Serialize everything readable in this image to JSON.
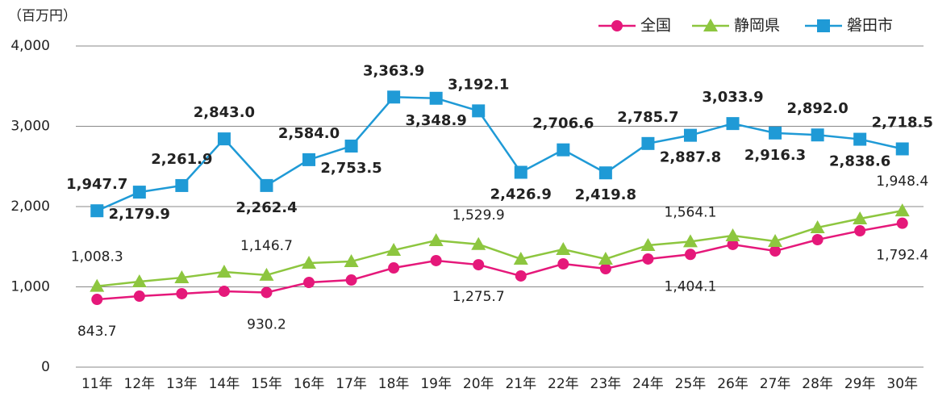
{
  "chart_data": {
    "type": "line",
    "y_label": "（百万円）",
    "categories": [
      "11年",
      "12年",
      "13年",
      "14年",
      "15年",
      "16年",
      "17年",
      "18年",
      "19年",
      "20年",
      "21年",
      "22年",
      "23年",
      "24年",
      "25年",
      "26年",
      "27年",
      "28年",
      "29年",
      "30年"
    ],
    "ylim": [
      0,
      4000
    ],
    "yticks": [
      0,
      {
        "value": 1000,
        "label": "1,000"
      },
      {
        "value": 2000,
        "label": "2,000"
      },
      {
        "value": 3000,
        "label": "3,000"
      },
      {
        "value": 4000,
        "label": "4,000"
      }
    ],
    "grid": true,
    "legend": "top-right",
    "series": [
      {
        "name": "全国",
        "color": "#e5187a",
        "marker": "circle",
        "values": [
          843.7,
          884,
          915,
          945,
          930.2,
          1055,
          1085,
          1236,
          1327,
          1275.7,
          1136,
          1286,
          1226,
          1347,
          1404.1,
          1528,
          1447,
          1588,
          1698,
          1792.4
        ],
        "value_labels": [
          "843.7",
          null,
          null,
          null,
          "930.2",
          null,
          null,
          null,
          null,
          "1,275.7",
          null,
          null,
          null,
          null,
          "1,404.1",
          null,
          null,
          null,
          null,
          "1,792.4"
        ]
      },
      {
        "name": "静岡県",
        "color": "#8dc63f",
        "marker": "triangle",
        "values": [
          1008.3,
          1065,
          1115,
          1186,
          1146.7,
          1296,
          1316,
          1457,
          1578,
          1529.9,
          1347,
          1467,
          1347,
          1518,
          1564.1,
          1638,
          1568,
          1739,
          1849,
          1948.4
        ],
        "value_labels": [
          "1,008.3",
          null,
          null,
          null,
          "1,146.7",
          null,
          null,
          null,
          null,
          "1,529.9",
          null,
          null,
          null,
          null,
          "1,564.1",
          null,
          null,
          null,
          null,
          "1,948.4"
        ]
      },
      {
        "name": "磐田市",
        "color": "#1f9ad6",
        "marker": "square",
        "values": [
          1947.7,
          2179.9,
          2261.9,
          2843.0,
          2262.4,
          2584.0,
          2753.5,
          3363.9,
          3348.9,
          3192.1,
          2426.9,
          2706.6,
          2419.8,
          2785.7,
          2887.8,
          3033.9,
          2916.3,
          2892.0,
          2838.6,
          2718.5
        ],
        "value_labels": [
          "1,947.7",
          "2,179.9",
          "2,261.9",
          "2,843.0",
          "2,262.4",
          "2,584.0",
          "2,753.5",
          "3,363.9",
          "3,348.9",
          "3,192.1",
          "2,426.9",
          "2,706.6",
          "2,419.8",
          "2,785.7",
          "2,887.8",
          "3,033.9",
          "2,916.3",
          "2,892.0",
          "2,838.6",
          "2,718.5"
        ]
      }
    ]
  }
}
